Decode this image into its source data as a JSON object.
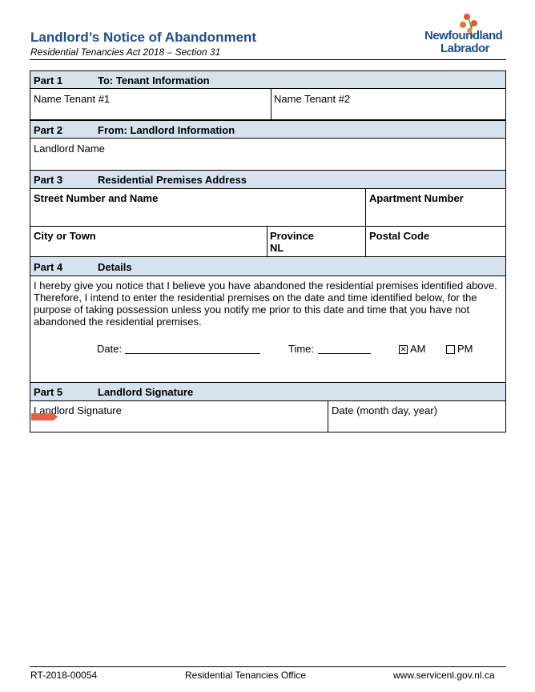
{
  "header": {
    "title": "Landlord’s Notice of Abandonment",
    "subtitle": "Residential Tenancies Act 2018 – Section 31",
    "logo_text": [
      "Newfoundland",
      "Labrador"
    ]
  },
  "parts": [
    {
      "part": "Part 1",
      "title": "To: Tenant Information"
    },
    {
      "part": "Part 2",
      "title": "From: Landlord Information"
    },
    {
      "part": "Part 3",
      "title": "Residential Premises Address"
    },
    {
      "part": "Part 4",
      "title": "Details"
    },
    {
      "part": "Part 5",
      "title": "Landlord Signature"
    }
  ],
  "fields": {
    "tenant1": "Name Tenant #1",
    "tenant2": "Name Tenant #2",
    "landlord_name": "Landlord Name",
    "street": "Street Number and Name",
    "apartment": "Apartment Number",
    "city": "City or Town",
    "province": "Province",
    "province_value": "NL",
    "postal": "Postal Code",
    "signature": "Landlord Signature",
    "sig_date": "Date (month day, year)"
  },
  "details": {
    "text": "I hereby give you notice that I believe you have abandoned the residential premises identified above. Therefore, I intend to enter the residential premises on the date and time identified below, for the purpose of taking possession unless you notify me prior to this date and time that you have not abandoned the residential premises.",
    "date_label": "Date:",
    "time_label": "Time:",
    "am": "AM",
    "pm": "PM",
    "am_checked": true,
    "pm_checked": false
  },
  "footer": {
    "code": "RT-2018-00054",
    "office": "Residential Tenancies Office",
    "url": "www.servicenl.gov.nl.ca"
  },
  "colors": {
    "title": "#1f4e8c",
    "header_bg": "#d6e3ee"
  }
}
